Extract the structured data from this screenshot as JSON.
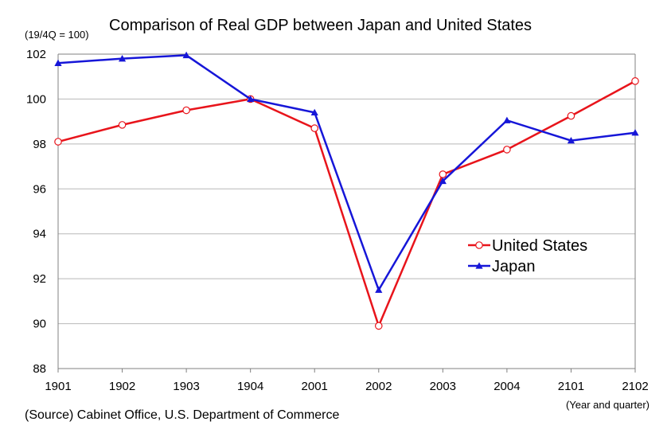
{
  "chart_data": {
    "type": "line",
    "title": "Comparison of Real GDP between Japan and United States",
    "y_unit_label": "(19/4Q = 100)",
    "xlabel": "(Year and quarter)",
    "ylabel": "",
    "categories": [
      "1901",
      "1902",
      "1903",
      "1904",
      "2001",
      "2002",
      "2003",
      "2004",
      "2101",
      "2102"
    ],
    "ylim": [
      88,
      102
    ],
    "yticks": [
      88,
      90,
      92,
      94,
      96,
      98,
      100,
      102
    ],
    "grid": true,
    "legend_position": "right-middle",
    "series": [
      {
        "name": "United States",
        "color": "#e8141b",
        "marker": "open-circle",
        "values": [
          98.1,
          98.85,
          99.5,
          100.0,
          98.7,
          89.9,
          96.65,
          97.75,
          99.25,
          100.8
        ]
      },
      {
        "name": "Japan",
        "color": "#1616d8",
        "marker": "filled-triangle",
        "values": [
          101.6,
          101.8,
          101.95,
          100.0,
          99.4,
          91.5,
          96.35,
          99.05,
          98.15,
          98.5
        ]
      }
    ],
    "source": "(Source) Cabinet Office, U.S. Department of Commerce"
  }
}
